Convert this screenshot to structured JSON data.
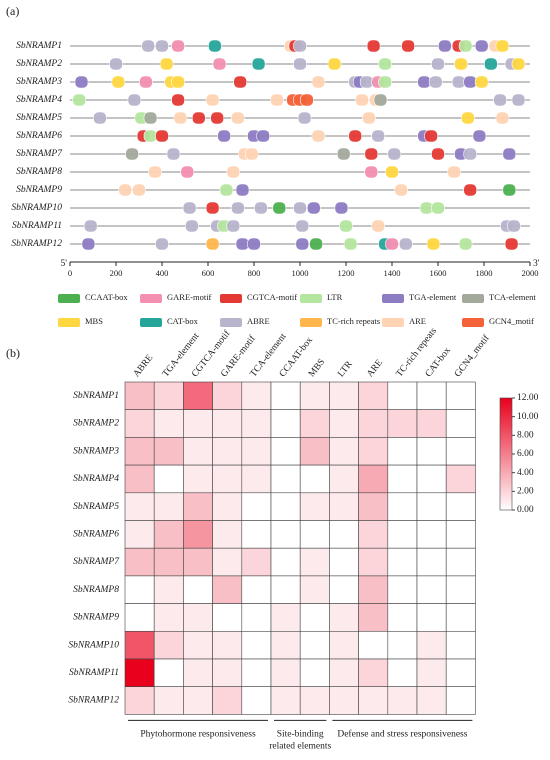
{
  "chart_data": [
    {
      "type": "promoter-map",
      "label": "(a)",
      "xlim": [
        0,
        2000
      ],
      "xticks": [
        0,
        200,
        400,
        600,
        800,
        1000,
        1200,
        1400,
        1600,
        1800,
        2000
      ],
      "ends": [
        "5'",
        "3'"
      ],
      "legend": [
        {
          "name": "CCAAT-box",
          "color": "#4caf50"
        },
        {
          "name": "GARE-motif",
          "color": "#f48fb1"
        },
        {
          "name": "CGTCA-motif",
          "color": "#e53935"
        },
        {
          "name": "LTR",
          "color": "#b5e6a0"
        },
        {
          "name": "TGA-element",
          "color": "#8e7cc3"
        },
        {
          "name": "TCA-element",
          "color": "#a3aa9c"
        },
        {
          "name": "MBS",
          "color": "#ffd740"
        },
        {
          "name": "CAT-box",
          "color": "#26a69a"
        },
        {
          "name": "ABRE",
          "color": "#b7b4cc"
        },
        {
          "name": "TC-rich repeats",
          "color": "#ffb74d"
        },
        {
          "name": "ARE",
          "color": "#ffd3b4"
        },
        {
          "name": "GCN4_motif",
          "color": "#f4623a"
        }
      ],
      "tracks": [
        {
          "name": "SbNRAMP1",
          "elements": [
            [
              "ABRE",
              340
            ],
            [
              "ABRE",
              400
            ],
            [
              "GARE-motif",
              470
            ],
            [
              "CAT-box",
              630
            ],
            [
              "ARE",
              960
            ],
            [
              "CGTCA-motif",
              980
            ],
            [
              "ABRE",
              1000
            ],
            [
              "CGTCA-motif",
              1320
            ],
            [
              "CGTCA-motif",
              1470
            ],
            [
              "TGA-element",
              1630
            ],
            [
              "CGTCA-motif",
              1690
            ],
            [
              "LTR",
              1720
            ],
            [
              "TGA-element",
              1790
            ],
            [
              "ARE",
              1850
            ],
            [
              "MBS",
              1880
            ]
          ]
        },
        {
          "name": "SbNRAMP2",
          "elements": [
            [
              "ABRE",
              200
            ],
            [
              "MBS",
              420
            ],
            [
              "GARE-motif",
              650
            ],
            [
              "CAT-box",
              820
            ],
            [
              "ABRE",
              1000
            ],
            [
              "MBS",
              1150
            ],
            [
              "LTR",
              1370
            ],
            [
              "ABRE",
              1600
            ],
            [
              "MBS",
              1700
            ],
            [
              "CAT-box",
              1830
            ],
            [
              "ABRE",
              1920
            ],
            [
              "MBS",
              1950
            ]
          ]
        },
        {
          "name": "SbNRAMP3",
          "elements": [
            [
              "TGA-element",
              50
            ],
            [
              "MBS",
              210
            ],
            [
              "GARE-motif",
              330
            ],
            [
              "MBS",
              440
            ],
            [
              "MBS",
              470
            ],
            [
              "CGTCA-motif",
              740
            ],
            [
              "ARE",
              1080
            ],
            [
              "ABRE",
              1240
            ],
            [
              "TGA-element",
              1260
            ],
            [
              "ABRE",
              1290
            ],
            [
              "GARE-motif",
              1340
            ],
            [
              "LTR",
              1370
            ],
            [
              "TGA-element",
              1540
            ],
            [
              "ABRE",
              1590
            ],
            [
              "ABRE",
              1690
            ],
            [
              "TGA-element",
              1740
            ],
            [
              "MBS",
              1790
            ]
          ]
        },
        {
          "name": "SbNRAMP4",
          "elements": [
            [
              "LTR",
              40
            ],
            [
              "ABRE",
              280
            ],
            [
              "CGTCA-motif",
              470
            ],
            [
              "ARE",
              620
            ],
            [
              "ARE",
              900
            ],
            [
              "GCN4_motif",
              970
            ],
            [
              "GCN4_motif",
              1000
            ],
            [
              "GCN4_motif",
              1030
            ],
            [
              "ARE",
              1270
            ],
            [
              "ARE",
              1330
            ],
            [
              "TCA-element",
              1350
            ],
            [
              "ABRE",
              1870
            ],
            [
              "ABRE",
              1950
            ]
          ]
        },
        {
          "name": "SbNRAMP5",
          "elements": [
            [
              "ABRE",
              130
            ],
            [
              "LTR",
              310
            ],
            [
              "TCA-element",
              350
            ],
            [
              "ARE",
              480
            ],
            [
              "CGTCA-motif",
              560
            ],
            [
              "CGTCA-motif",
              640
            ],
            [
              "ARE",
              730
            ],
            [
              "ABRE",
              1020
            ],
            [
              "ARE",
              1300
            ],
            [
              "MBS",
              1730
            ],
            [
              "ARE",
              1880
            ]
          ]
        },
        {
          "name": "SbNRAMP6",
          "elements": [
            [
              "CGTCA-motif",
              320
            ],
            [
              "LTR",
              350
            ],
            [
              "CGTCA-motif",
              400
            ],
            [
              "TGA-element",
              670
            ],
            [
              "TGA-element",
              800
            ],
            [
              "TGA-element",
              840
            ],
            [
              "ARE",
              1080
            ],
            [
              "CGTCA-motif",
              1240
            ],
            [
              "ABRE",
              1340
            ],
            [
              "TGA-element",
              1540
            ],
            [
              "CGTCA-motif",
              1570
            ],
            [
              "TGA-element",
              1780
            ]
          ]
        },
        {
          "name": "SbNRAMP7",
          "elements": [
            [
              "TCA-element",
              270
            ],
            [
              "ABRE",
              450
            ],
            [
              "ARE",
              760
            ],
            [
              "ARE",
              790
            ],
            [
              "TCA-element",
              1190
            ],
            [
              "CGTCA-motif",
              1310
            ],
            [
              "ABRE",
              1410
            ],
            [
              "CGTCA-motif",
              1600
            ],
            [
              "TGA-element",
              1700
            ],
            [
              "ABRE",
              1740
            ],
            [
              "TGA-element",
              1910
            ]
          ]
        },
        {
          "name": "SbNRAMP8",
          "elements": [
            [
              "ARE",
              370
            ],
            [
              "GARE-motif",
              510
            ],
            [
              "ARE",
              710
            ],
            [
              "GARE-motif",
              1310
            ],
            [
              "MBS",
              1400
            ],
            [
              "ARE",
              1670
            ]
          ]
        },
        {
          "name": "SbNRAMP9",
          "elements": [
            [
              "ARE",
              240
            ],
            [
              "ARE",
              300
            ],
            [
              "LTR",
              680
            ],
            [
              "TGA-element",
              750
            ],
            [
              "ARE",
              1440
            ],
            [
              "CGTCA-motif",
              1740
            ],
            [
              "CCAAT-box",
              1910
            ]
          ]
        },
        {
          "name": "SbNRAMP10",
          "elements": [
            [
              "ABRE",
              520
            ],
            [
              "CGTCA-motif",
              620
            ],
            [
              "ABRE",
              730
            ],
            [
              "ABRE",
              830
            ],
            [
              "CCAAT-box",
              910
            ],
            [
              "ABRE",
              1000
            ],
            [
              "TGA-element",
              1060
            ],
            [
              "TGA-element",
              1180
            ],
            [
              "LTR",
              1550
            ],
            [
              "LTR",
              1600
            ]
          ]
        },
        {
          "name": "SbNRAMP11",
          "elements": [
            [
              "ABRE",
              90
            ],
            [
              "ABRE",
              530
            ],
            [
              "ABRE",
              640
            ],
            [
              "LTR",
              670
            ],
            [
              "ABRE",
              710
            ],
            [
              "ABRE",
              1010
            ],
            [
              "LTR",
              1200
            ],
            [
              "ARE",
              1340
            ],
            [
              "ABRE",
              1900
            ],
            [
              "ABRE",
              1930
            ]
          ]
        },
        {
          "name": "SbNRAMP12",
          "elements": [
            [
              "TGA-element",
              80
            ],
            [
              "ABRE",
              400
            ],
            [
              "TC-rich repeats",
              620
            ],
            [
              "TGA-element",
              750
            ],
            [
              "TGA-element",
              800
            ],
            [
              "TGA-element",
              1010
            ],
            [
              "CCAAT-box",
              1070
            ],
            [
              "LTR",
              1220
            ],
            [
              "CAT-box",
              1370
            ],
            [
              "GARE-motif",
              1400
            ],
            [
              "ABRE",
              1460
            ],
            [
              "MBS",
              1580
            ],
            [
              "LTR",
              1720
            ],
            [
              "CGTCA-motif",
              1920
            ]
          ]
        }
      ]
    },
    {
      "type": "heatmap",
      "label": "(b)",
      "columns": [
        "ABRE",
        "TGA-element",
        "CGTCA-motif",
        "GARE-motif",
        "TCA-element",
        "CCAAT-box",
        "MBS",
        "LTR",
        "ARE",
        "TC-rich repeats",
        "CAT-box",
        "GCN4_motif"
      ],
      "rows": [
        "SbNRAMP1",
        "SbNRAMP2",
        "SbNRAMP3",
        "SbNRAMP4",
        "SbNRAMP5",
        "SbNRAMP6",
        "SbNRAMP7",
        "SbNRAMP8",
        "SbNRAMP9",
        "SbNRAMP10",
        "SbNRAMP11",
        "SbNRAMP12"
      ],
      "values": [
        [
          3,
          2,
          7,
          2,
          1,
          0,
          1,
          1,
          2,
          0,
          0,
          0
        ],
        [
          2,
          1,
          1,
          1,
          1,
          0,
          2,
          1,
          2,
          2,
          2,
          0
        ],
        [
          3,
          3,
          1,
          1,
          1,
          0,
          3,
          1,
          2,
          0,
          0,
          0
        ],
        [
          3,
          0,
          1,
          1,
          1,
          0,
          0,
          1,
          4,
          0,
          0,
          2
        ],
        [
          1,
          1,
          3,
          1,
          0,
          0,
          1,
          1,
          3,
          0,
          0,
          0
        ],
        [
          1,
          3,
          5,
          1,
          0,
          0,
          0,
          0,
          2,
          0,
          0,
          0
        ],
        [
          3,
          3,
          3,
          1,
          2,
          0,
          1,
          0,
          2,
          0,
          0,
          0
        ],
        [
          0,
          1,
          0,
          3,
          0,
          0,
          1,
          0,
          3,
          0,
          0,
          0
        ],
        [
          0,
          1,
          1,
          0,
          0,
          1,
          0,
          1,
          3,
          0,
          0,
          0
        ],
        [
          8,
          2,
          1,
          1,
          0,
          1,
          0,
          1,
          0,
          0,
          1,
          0
        ],
        [
          12,
          0,
          1,
          1,
          0,
          1,
          0,
          1,
          2,
          0,
          1,
          0
        ],
        [
          2,
          1,
          1,
          2,
          0,
          1,
          1,
          1,
          1,
          1,
          1,
          0
        ]
      ],
      "color": "#e8001c",
      "clim": [
        0,
        12
      ],
      "cticks": [
        {
          "value": 0,
          "label": "0.00"
        },
        {
          "value": 2,
          "label": "2.00"
        },
        {
          "value": 4,
          "label": "4.00"
        },
        {
          "value": 6,
          "label": "6.00"
        },
        {
          "value": 8,
          "label": "8.00"
        },
        {
          "value": 10,
          "label": "10.00"
        },
        {
          "value": 12,
          "label": "12.00"
        }
      ],
      "groups": [
        [
          "Phytohormone responsiveness"
        ],
        [
          "Site-binding",
          "related elements"
        ],
        [
          "Defense and stress responsiveness"
        ]
      ]
    }
  ]
}
